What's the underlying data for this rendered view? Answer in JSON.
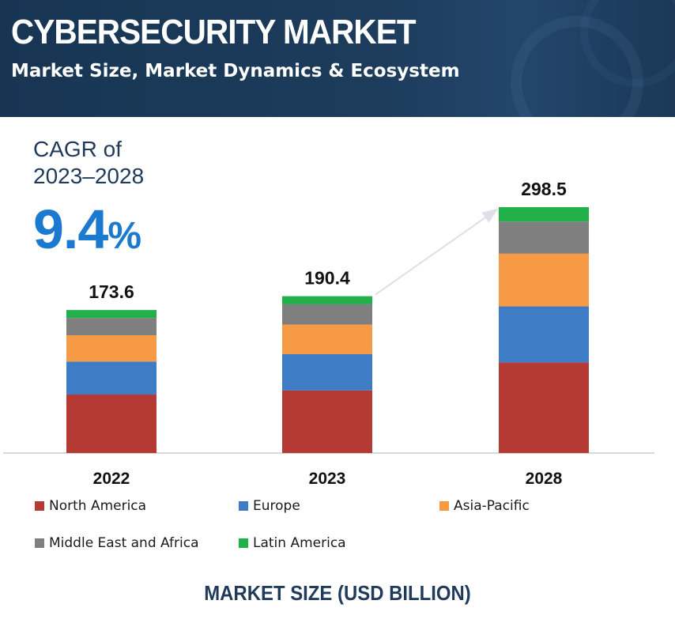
{
  "header": {
    "title": "CYBERSECURITY MARKET",
    "subtitle": "Market Size, Market Dynamics & Ecosystem"
  },
  "cagr": {
    "label": "CAGR of 2023–2028",
    "value": "9.4",
    "unit": "%"
  },
  "footer": "MARKET SIZE (USD BILLION)",
  "colors": {
    "header_bg": "#1b3857",
    "north_america": "#b53a33",
    "europe": "#3e7cc5",
    "asia_pacific": "#f79a45",
    "middle_east_africa": "#7f7f7f",
    "latin_america": "#22b04a",
    "cagr": "#1b7ad0"
  },
  "chart_data": {
    "type": "bar",
    "stacked": true,
    "categories": [
      "2022",
      "2023",
      "2028"
    ],
    "totals": [
      173.6,
      190.4,
      298.5
    ],
    "total_labels": [
      "173.6",
      "190.4",
      "298.5"
    ],
    "ylim": [
      0,
      300
    ],
    "grid": false,
    "legend_position": "bottom",
    "series": [
      {
        "name": "North America",
        "color": "#b53a33",
        "values": [
          71.0,
          76.0,
          110.0
        ]
      },
      {
        "name": "Europe",
        "color": "#3e7cc5",
        "values": [
          40.0,
          44.0,
          68.0
        ]
      },
      {
        "name": "Asia-Pacific",
        "color": "#f79a45",
        "values": [
          32.0,
          36.0,
          64.0
        ]
      },
      {
        "name": "Middle East and Africa",
        "color": "#7f7f7f",
        "values": [
          21.0,
          24.5,
          39.0
        ]
      },
      {
        "name": "Latin America",
        "color": "#22b04a",
        "values": [
          9.6,
          9.9,
          17.5
        ]
      }
    ]
  }
}
